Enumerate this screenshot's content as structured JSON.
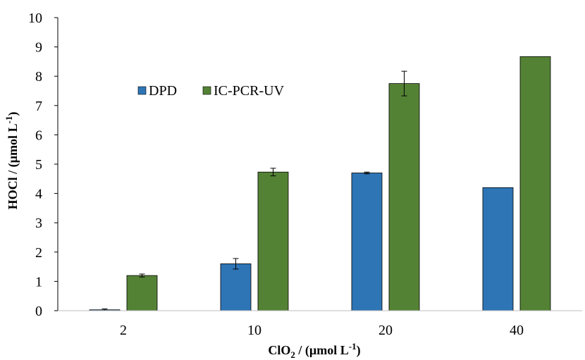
{
  "chart_data": {
    "type": "bar",
    "categories": [
      "2",
      "10",
      "20",
      "40"
    ],
    "series": [
      {
        "name": "DPD",
        "color": "#2e75b6",
        "values": [
          0.03,
          1.6,
          4.7,
          4.2
        ],
        "errors": [
          0.03,
          0.18,
          0.03,
          null
        ]
      },
      {
        "name": "IC-PCR-UV",
        "color": "#548235",
        "values": [
          1.2,
          4.73,
          7.75,
          8.67
        ],
        "errors": [
          0.05,
          0.13,
          0.42,
          null
        ]
      }
    ],
    "ylim": [
      0,
      10
    ],
    "yticks": [
      "0",
      "1",
      "2",
      "3",
      "4",
      "5",
      "6",
      "7",
      "8",
      "9",
      "10"
    ],
    "xlabel": {
      "main": "ClO",
      "sub": "2",
      "mid": " / (µmol L",
      "sup": "-1",
      "end": ")"
    },
    "ylabel": {
      "main": "HOCl / (µmol L",
      "sup": "-1",
      "end": ")"
    },
    "legend_position": "top-left",
    "grid": false
  }
}
